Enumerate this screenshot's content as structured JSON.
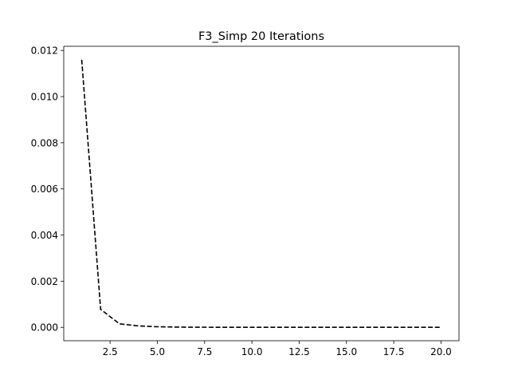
{
  "chart_data": {
    "type": "line",
    "title": "F3_Simp 20 Iterations",
    "xlabel": "",
    "ylabel": "",
    "x": [
      1,
      2,
      3,
      4,
      5,
      6,
      7,
      8,
      9,
      10,
      11,
      12,
      13,
      14,
      15,
      16,
      17,
      18,
      19,
      20
    ],
    "series": [
      {
        "values": [
          0.0116,
          0.00078,
          0.00015,
          6e-05,
          2.5e-05,
          1e-05,
          5e-06,
          3e-06,
          2e-06,
          1e-06,
          8e-07,
          5e-07,
          4e-07,
          3e-07,
          2e-07,
          2e-07,
          1e-07,
          1e-07,
          1e-07,
          1e-07
        ],
        "color": "#000000",
        "line_style": "dashed"
      }
    ],
    "xlim": [
      0.05,
      20.95
    ],
    "ylim": [
      -0.00058,
      0.01218
    ],
    "xticks": [
      2.5,
      5.0,
      7.5,
      10.0,
      12.5,
      15.0,
      17.5,
      20.0
    ],
    "xtick_labels": [
      "2.5",
      "5.0",
      "7.5",
      "10.0",
      "12.5",
      "15.0",
      "17.5",
      "20.0"
    ],
    "yticks": [
      0.0,
      0.002,
      0.004,
      0.006,
      0.008,
      0.01,
      0.012
    ],
    "ytick_labels": [
      "0.000",
      "0.002",
      "0.004",
      "0.006",
      "0.008",
      "0.010",
      "0.012"
    ],
    "grid": false,
    "legend": false
  }
}
